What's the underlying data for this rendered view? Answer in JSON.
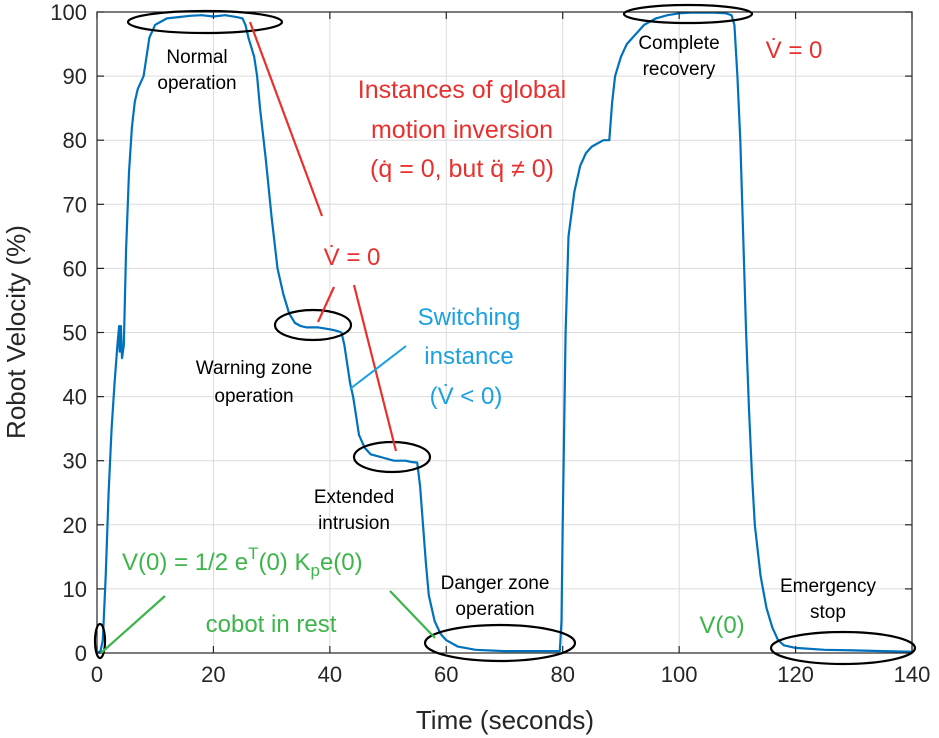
{
  "chart_data": {
    "type": "line",
    "xlabel": "Time (seconds)",
    "ylabel": "Robot Velocity (%)",
    "xlim": [
      0,
      140
    ],
    "ylim": [
      0,
      100
    ],
    "grid": true,
    "x_ticks": [
      "0",
      "20",
      "40",
      "60",
      "80",
      "100",
      "120",
      "140"
    ],
    "y_ticks": [
      "0",
      "10",
      "20",
      "30",
      "40",
      "50",
      "60",
      "70",
      "80",
      "90",
      "100"
    ],
    "series": [
      {
        "name": "Robot Velocity",
        "color": "#0072BD",
        "points": [
          [
            0,
            0
          ],
          [
            0.6,
            0.3
          ],
          [
            1.0,
            2
          ],
          [
            1.5,
            12
          ],
          [
            2,
            25
          ],
          [
            2.5,
            35
          ],
          [
            3,
            42
          ],
          [
            3.5,
            48
          ],
          [
            3.8,
            51
          ],
          [
            3.9,
            47
          ],
          [
            4.1,
            51
          ],
          [
            4.3,
            46
          ],
          [
            4.6,
            48
          ],
          [
            5,
            63
          ],
          [
            5.5,
            75
          ],
          [
            6,
            82
          ],
          [
            6.5,
            86
          ],
          [
            7,
            88
          ],
          [
            8,
            90
          ],
          [
            9,
            96
          ],
          [
            10,
            98
          ],
          [
            11,
            98.5
          ],
          [
            12,
            99
          ],
          [
            14,
            99.2
          ],
          [
            16,
            99.4
          ],
          [
            18,
            99.5
          ],
          [
            20,
            99.3
          ],
          [
            22,
            99.5
          ],
          [
            24,
            99.2
          ],
          [
            25,
            99
          ],
          [
            25.5,
            98
          ],
          [
            26,
            96
          ],
          [
            27,
            93
          ],
          [
            27.5,
            90
          ],
          [
            28,
            85
          ],
          [
            29,
            77
          ],
          [
            30,
            68
          ],
          [
            31,
            60
          ],
          [
            32,
            56
          ],
          [
            33,
            53
          ],
          [
            34,
            51.5
          ],
          [
            35,
            51
          ],
          [
            36,
            50.8
          ],
          [
            38,
            50.8
          ],
          [
            40,
            50.5
          ],
          [
            41,
            50.3
          ],
          [
            42,
            50
          ],
          [
            42.5,
            48
          ],
          [
            43,
            45
          ],
          [
            43.5,
            42
          ],
          [
            44,
            40
          ],
          [
            44.5,
            37
          ],
          [
            45,
            34
          ],
          [
            46,
            32
          ],
          [
            47,
            31
          ],
          [
            49,
            30.5
          ],
          [
            51,
            30
          ],
          [
            53,
            30
          ],
          [
            54,
            29.8
          ],
          [
            55,
            29.7
          ],
          [
            55.5,
            26
          ],
          [
            56,
            20
          ],
          [
            56.5,
            14
          ],
          [
            57,
            9
          ],
          [
            58,
            5
          ],
          [
            59,
            3
          ],
          [
            60,
            2
          ],
          [
            62,
            1
          ],
          [
            65,
            0.5
          ],
          [
            70,
            0.3
          ],
          [
            75,
            0.3
          ],
          [
            78,
            0.3
          ],
          [
            79.5,
            0.3
          ],
          [
            79.8,
            5
          ],
          [
            80,
            20
          ],
          [
            80.5,
            50
          ],
          [
            81,
            65
          ],
          [
            82,
            72
          ],
          [
            83,
            76
          ],
          [
            84,
            78
          ],
          [
            85,
            79
          ],
          [
            86,
            79.5
          ],
          [
            87,
            80
          ],
          [
            88,
            80
          ],
          [
            88.5,
            86
          ],
          [
            89,
            90
          ],
          [
            90,
            93
          ],
          [
            91,
            95
          ],
          [
            92,
            96
          ],
          [
            93,
            97
          ],
          [
            94,
            98
          ],
          [
            96,
            99
          ],
          [
            98,
            99.5
          ],
          [
            100,
            99.8
          ],
          [
            102,
            99.9
          ],
          [
            104,
            99.9
          ],
          [
            106,
            99.9
          ],
          [
            108,
            99.8
          ],
          [
            109,
            99.5
          ],
          [
            109.5,
            98
          ],
          [
            110,
            90
          ],
          [
            110.5,
            80
          ],
          [
            111,
            65
          ],
          [
            111.5,
            50
          ],
          [
            112,
            38
          ],
          [
            112.5,
            28
          ],
          [
            113,
            20
          ],
          [
            114,
            12
          ],
          [
            115,
            7
          ],
          [
            116,
            4
          ],
          [
            117,
            2
          ],
          [
            118,
            1.2
          ],
          [
            120,
            0.8
          ],
          [
            125,
            0.5
          ],
          [
            130,
            0.4
          ],
          [
            135,
            0.3
          ],
          [
            140,
            0.2
          ]
        ]
      }
    ],
    "annotations": {
      "normal_operation": [
        "Normal",
        "operation"
      ],
      "warning_zone": [
        "Warning zone",
        "operation"
      ],
      "extended_intrusion": [
        "Extended",
        "intrusion"
      ],
      "danger_zone": [
        "Danger zone",
        "operation"
      ],
      "complete_recovery": [
        "Complete",
        "recovery"
      ],
      "emergency_stop": [
        "Emergency",
        "stop"
      ],
      "global_inversion": [
        "Instances of global",
        "motion inversion",
        "(q̇ = 0, but q̈ ≠ 0)"
      ],
      "vdot_zero_mid": "V̇ = 0",
      "vdot_zero_right": "V̇ = 0",
      "switching_instance": [
        "Switching",
        "instance",
        "(V̇ < 0)"
      ],
      "v0_formula": "V(0) = 1/2 e",
      "v0_sup": "T",
      "v0_mid": "(0) K",
      "v0_sub": "p",
      "v0_tail": "e(0)",
      "cobot_rest": "cobot in rest",
      "v0_label": "V(0)"
    },
    "colors": {
      "line": "#0072BD",
      "red": "#E8312F",
      "blue_text": "#1BA1E2",
      "green": "#3DB54A"
    }
  }
}
